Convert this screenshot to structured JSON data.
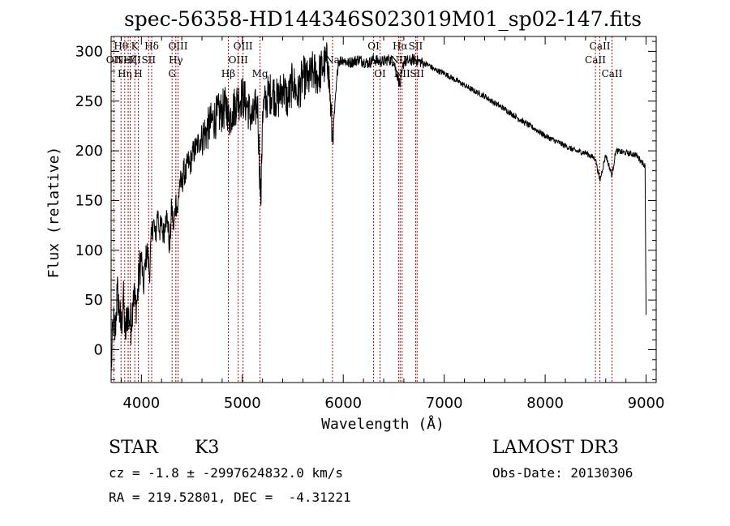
{
  "chart_data": {
    "type": "line",
    "title": "spec-56358-HD144346S023019M01_sp02-147.fits",
    "xlabel": "Wavelength (Å)",
    "ylabel": "Flux (relative)",
    "xlim": [
      3700,
      9100
    ],
    "ylim": [
      -33,
      315
    ],
    "xticks": [
      4000,
      5000,
      6000,
      7000,
      8000,
      9000
    ],
    "yticks": [
      0,
      50,
      100,
      150,
      200,
      250,
      300
    ],
    "grid": false,
    "line_color": "#000000",
    "marker_color": "#cc0000",
    "series": [
      {
        "x": [
          3700,
          3720,
          3740,
          3760,
          3780,
          3800,
          3820,
          3840,
          3860,
          3880,
          3900,
          3920,
          3940,
          3960,
          3980,
          4000,
          4020,
          4040,
          4060,
          4080,
          4100,
          4120,
          4140,
          4160,
          4180,
          4200,
          4220,
          4240,
          4260,
          4280,
          4300,
          4320,
          4340,
          4360,
          4380,
          4400,
          4420,
          4440,
          4460,
          4480,
          4500,
          4550,
          4600,
          4650,
          4700,
          4750,
          4800,
          4850,
          4861,
          4900,
          4950,
          5000,
          5050,
          5100,
          5150,
          5183,
          5200,
          5250,
          5300,
          5350,
          5400,
          5450,
          5500,
          5550,
          5600,
          5650,
          5700,
          5750,
          5800,
          5850,
          5893,
          5950,
          6000,
          6050,
          6100,
          6150,
          6200,
          6250,
          6300,
          6350,
          6400,
          6450,
          6500,
          6563,
          6600,
          6650,
          6700,
          6750,
          6800,
          6850,
          6900,
          7000,
          7100,
          7200,
          7300,
          7400,
          7500,
          7600,
          7700,
          7800,
          7900,
          8000,
          8100,
          8200,
          8300,
          8400,
          8498,
          8542,
          8600,
          8662,
          8700,
          8800,
          8900,
          8950,
          8990,
          9000
        ],
        "y": [
          -25,
          30,
          15,
          60,
          40,
          20,
          55,
          10,
          40,
          30,
          25,
          60,
          45,
          50,
          80,
          95,
          60,
          90,
          100,
          75,
          115,
          130,
          110,
          140,
          120,
          125,
          115,
          135,
          130,
          100,
          145,
          120,
          150,
          140,
          170,
          165,
          180,
          175,
          190,
          185,
          195,
          205,
          215,
          220,
          230,
          235,
          240,
          245,
          230,
          240,
          250,
          255,
          245,
          230,
          250,
          145,
          240,
          255,
          260,
          250,
          265,
          250,
          270,
          255,
          275,
          270,
          280,
          275,
          285,
          290,
          210,
          290,
          292,
          288,
          290,
          292,
          290,
          288,
          292,
          290,
          290,
          292,
          290,
          265,
          290,
          290,
          292,
          290,
          288,
          286,
          282,
          278,
          272,
          266,
          260,
          255,
          248,
          242,
          235,
          228,
          222,
          215,
          210,
          205,
          200,
          198,
          192,
          170,
          196,
          175,
          200,
          198,
          196,
          190,
          185,
          35
        ]
      }
    ],
    "line_markers": [
      {
        "wl": 3727,
        "label": "OII",
        "row": 1
      },
      {
        "wl": 3798,
        "label": "Hθ",
        "row": 0
      },
      {
        "wl": 3835,
        "label": "Hη",
        "row": 2
      },
      {
        "wl": 3869,
        "label": "NeIII",
        "row": 1
      },
      {
        "wl": 3889,
        "label": "Hζ",
        "row": 1
      },
      {
        "wl": 3934,
        "label": "K",
        "row": 0
      },
      {
        "wl": 3969,
        "label": "H",
        "row": 2
      },
      {
        "wl": 4072,
        "label": "SII",
        "row": 1
      },
      {
        "wl": 4102,
        "label": "Hδ",
        "row": 0
      },
      {
        "wl": 4304,
        "label": "G",
        "row": 2
      },
      {
        "wl": 4341,
        "label": "Hγ",
        "row": 1
      },
      {
        "wl": 4363,
        "label": "OIII",
        "row": 0
      },
      {
        "wl": 4861,
        "label": "Hβ",
        "row": 2
      },
      {
        "wl": 4959,
        "label": "OIII",
        "row": 1
      },
      {
        "wl": 5007,
        "label": "OIII",
        "row": 0
      },
      {
        "wl": 5175,
        "label": "Mg",
        "row": 2
      },
      {
        "wl": 5893,
        "label": "Na",
        "row": 1
      },
      {
        "wl": 6300,
        "label": "OI",
        "row": 0
      },
      {
        "wl": 6364,
        "label": "OI",
        "row": 2
      },
      {
        "wl": 6548,
        "label": "NII",
        "row": 1
      },
      {
        "wl": 6563,
        "label": "Hα",
        "row": 0
      },
      {
        "wl": 6583,
        "label": "NII",
        "row": 2
      },
      {
        "wl": 6717,
        "label": "SII",
        "row": 0
      },
      {
        "wl": 6731,
        "label": "SII",
        "row": 2
      },
      {
        "wl": 8498,
        "label": "CaII",
        "row": 1
      },
      {
        "wl": 8542,
        "label": "CaII",
        "row": 0
      },
      {
        "wl": 8662,
        "label": "CaII",
        "row": 2
      }
    ]
  },
  "info": {
    "class_label": "STAR",
    "subclass": "K3",
    "survey": "LAMOST DR3",
    "cz": "cz = -1.8 ± -2997624832.0 km/s",
    "obs_date": "Obs-Date: 20130306",
    "coords": "RA = 219.52801, DEC =  -4.31221"
  }
}
